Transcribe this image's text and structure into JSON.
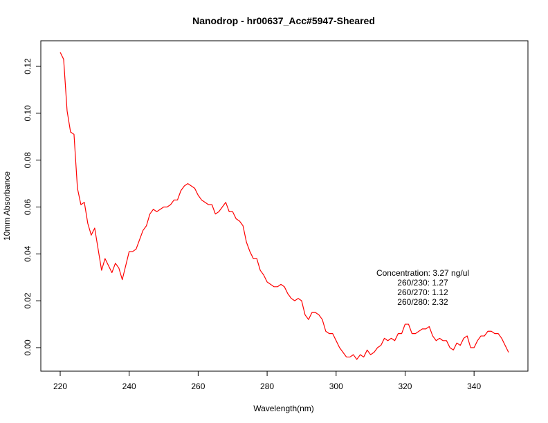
{
  "chart_data": {
    "type": "line",
    "title": "Nanodrop - hr00637_Acc#5947-Sheared",
    "xlabel": "Wavelength(nm)",
    "ylabel": "10mm Absorbance",
    "xlim": [
      220,
      350
    ],
    "ylim": [
      -0.01,
      0.13
    ],
    "x_ticks": [
      220,
      240,
      260,
      280,
      300,
      320,
      340
    ],
    "x_tick_labels": [
      "220",
      "240",
      "260",
      "280",
      "300",
      "320",
      "340"
    ],
    "y_ticks": [
      0.0,
      0.02,
      0.04,
      0.06,
      0.08,
      0.1,
      0.12
    ],
    "y_tick_labels": [
      "0.00",
      "0.02",
      "0.04",
      "0.06",
      "0.08",
      "0.10",
      "0.12"
    ],
    "grid": false,
    "line_color": "#ff0000",
    "annotations": [
      "Concentration: 3.27 ng/ul",
      "260/230: 1.27",
      "260/270: 1.12",
      "260/280: 2.32"
    ],
    "series": [
      {
        "x": [
          220,
          221,
          222,
          223,
          224,
          225,
          226,
          227,
          228,
          229,
          230,
          231,
          232,
          233,
          234,
          235,
          236,
          237,
          238,
          239,
          240,
          241,
          242,
          243,
          244,
          245,
          246,
          247,
          248,
          249,
          250,
          251,
          252,
          253,
          254,
          255,
          256,
          257,
          258,
          259,
          260,
          261,
          262,
          263,
          264,
          265,
          266,
          267,
          268,
          269,
          270,
          271,
          272,
          273,
          274,
          275,
          276,
          277,
          278,
          279,
          280,
          281,
          282,
          283,
          284,
          285,
          286,
          287,
          288,
          289,
          290,
          291,
          292,
          293,
          294,
          295,
          296,
          297,
          298,
          299,
          300,
          301,
          302,
          303,
          304,
          305,
          306,
          307,
          308,
          309,
          310,
          311,
          312,
          313,
          314,
          315,
          316,
          317,
          318,
          319,
          320,
          321,
          322,
          323,
          324,
          325,
          326,
          327,
          328,
          329,
          330,
          331,
          332,
          333,
          334,
          335,
          336,
          337,
          338,
          339,
          340,
          341,
          342,
          343,
          344,
          345,
          346,
          347,
          348,
          349,
          350
        ],
        "y": [
          0.126,
          0.123,
          0.101,
          0.092,
          0.091,
          0.068,
          0.061,
          0.062,
          0.053,
          0.048,
          0.051,
          0.042,
          0.033,
          0.038,
          0.035,
          0.032,
          0.036,
          0.034,
          0.029,
          0.035,
          0.041,
          0.041,
          0.042,
          0.046,
          0.05,
          0.052,
          0.057,
          0.059,
          0.058,
          0.059,
          0.06,
          0.06,
          0.061,
          0.063,
          0.063,
          0.067,
          0.069,
          0.07,
          0.069,
          0.068,
          0.065,
          0.063,
          0.062,
          0.061,
          0.061,
          0.057,
          0.058,
          0.06,
          0.062,
          0.058,
          0.058,
          0.055,
          0.054,
          0.052,
          0.045,
          0.041,
          0.038,
          0.038,
          0.033,
          0.031,
          0.028,
          0.027,
          0.026,
          0.026,
          0.027,
          0.026,
          0.023,
          0.021,
          0.02,
          0.021,
          0.02,
          0.014,
          0.012,
          0.015,
          0.015,
          0.014,
          0.012,
          0.007,
          0.006,
          0.006,
          0.003,
          0.0,
          -0.002,
          -0.004,
          -0.004,
          -0.003,
          -0.005,
          -0.003,
          -0.004,
          -0.001,
          -0.003,
          -0.002,
          0.0,
          0.001,
          0.004,
          0.003,
          0.004,
          0.003,
          0.006,
          0.006,
          0.01,
          0.01,
          0.006,
          0.006,
          0.007,
          0.008,
          0.008,
          0.009,
          0.005,
          0.003,
          0.004,
          0.003,
          0.003,
          0.0,
          -0.001,
          0.002,
          0.001,
          0.004,
          0.005,
          0.0,
          0.0,
          0.003,
          0.005,
          0.005,
          0.007,
          0.007,
          0.006,
          0.006,
          0.004,
          0.001,
          -0.002
        ]
      }
    ]
  }
}
